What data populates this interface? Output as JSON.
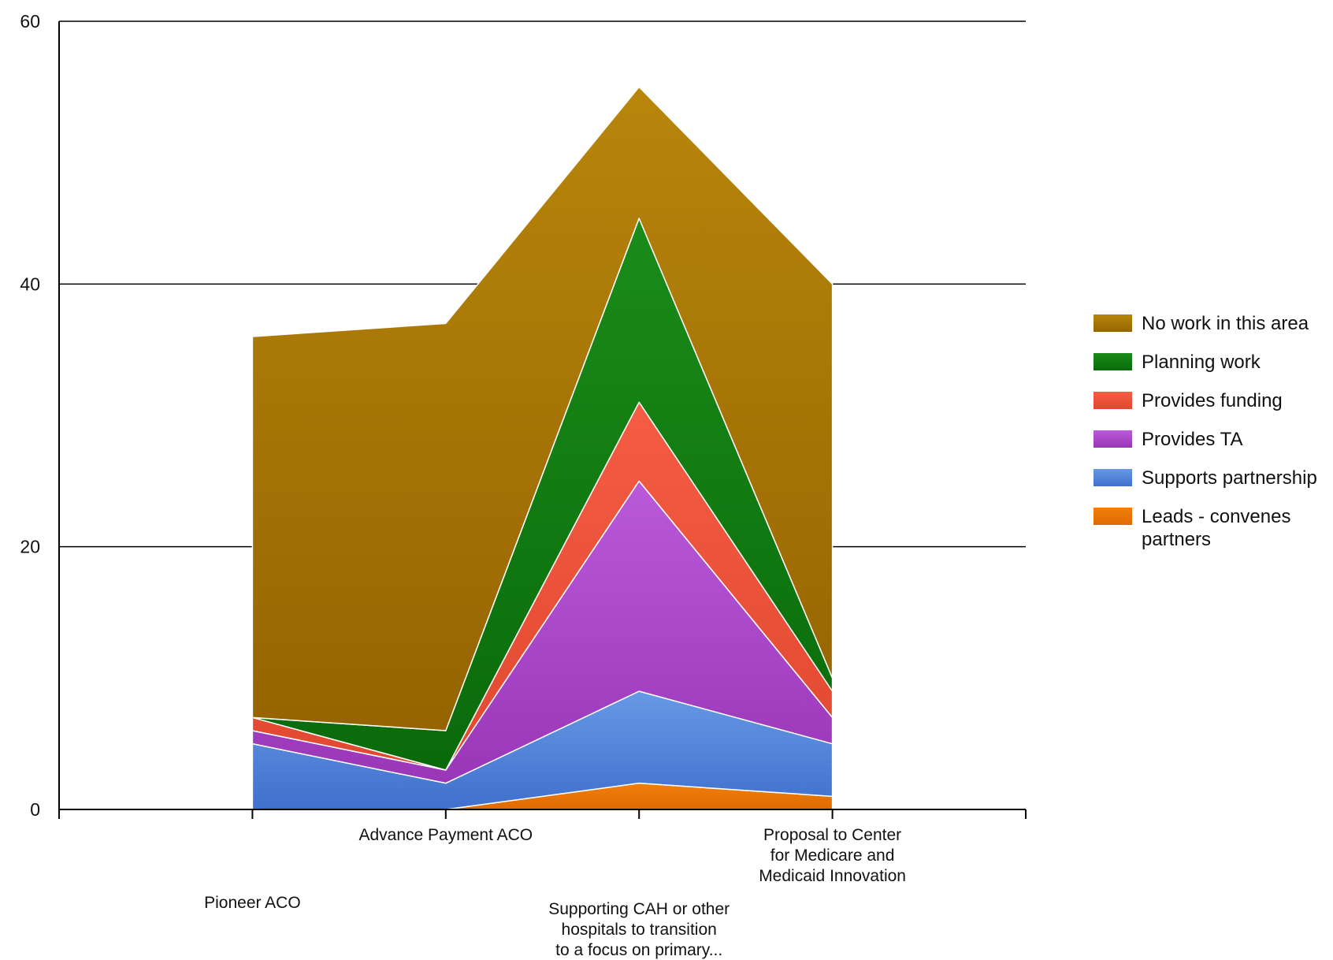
{
  "chart_data": {
    "type": "area",
    "stacked": true,
    "title": "",
    "xlabel": "",
    "ylabel": "",
    "ylim": [
      0,
      60
    ],
    "yticks": [
      0,
      20,
      40,
      60
    ],
    "grid": true,
    "legend_position": "right",
    "categories": [
      "Pioneer ACO",
      "Advance Payment ACO",
      "Supporting CAH or other hospitals to transition to a focus on primary...",
      "Proposal to Center for Medicare and Medicaid Innovation"
    ],
    "category_label_lines": [
      [
        "Pioneer ACO"
      ],
      [
        "Advance Payment ACO"
      ],
      [
        "Supporting CAH or other",
        "hospitals to transition",
        "to a focus on primary..."
      ],
      [
        "Proposal to Center",
        "for Medicare and",
        "Medicaid Innovation"
      ]
    ],
    "series": [
      {
        "name": "Leads - convenes partners",
        "legend_lines": [
          "Leads - convenes",
          "partners"
        ],
        "values": [
          0,
          0,
          2,
          1
        ],
        "color": "#f07f0a",
        "color_dark": "#e06a00"
      },
      {
        "name": "Supports partnership",
        "legend_lines": [
          "Supports partnership"
        ],
        "values": [
          5,
          2,
          7,
          4
        ],
        "color": "#6699e6",
        "color_dark": "#4070cc"
      },
      {
        "name": "Provides TA",
        "legend_lines": [
          "Provides TA"
        ],
        "values": [
          1,
          1,
          16,
          2
        ],
        "color": "#b95ad9",
        "color_dark": "#9a36b8"
      },
      {
        "name": "Provides funding",
        "legend_lines": [
          "Provides funding"
        ],
        "values": [
          1,
          0,
          6,
          2
        ],
        "color": "#f45c44",
        "color_dark": "#e04830"
      },
      {
        "name": "Planning work",
        "legend_lines": [
          "Planning work"
        ],
        "values": [
          0,
          3,
          14,
          1
        ],
        "color": "#1a8c1a",
        "color_dark": "#0a6a0a"
      },
      {
        "name": "No work in this area",
        "legend_lines": [
          "No work in this area"
        ],
        "values": [
          29,
          31,
          10,
          30
        ],
        "color": "#b8860b",
        "color_dark": "#966400"
      }
    ]
  }
}
